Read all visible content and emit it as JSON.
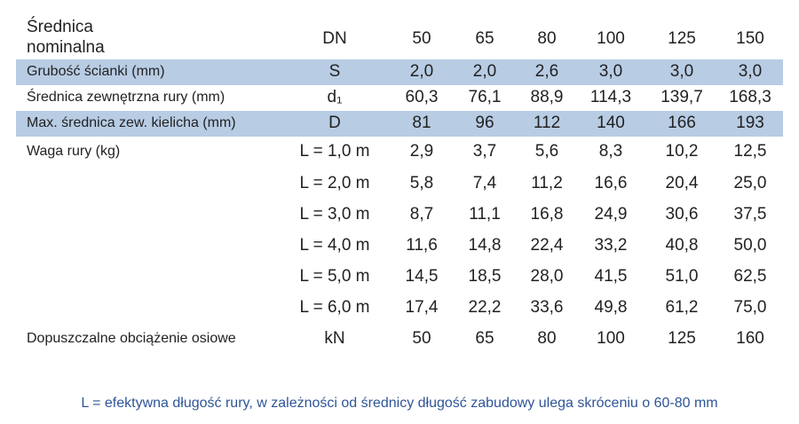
{
  "table": {
    "header": {
      "label": "Średnica nominalna",
      "unit": "DN",
      "values": [
        "50",
        "65",
        "80",
        "100",
        "125",
        "150"
      ]
    },
    "rows": [
      {
        "label": "Grubość ścianki (mm)",
        "unit": "S",
        "values": [
          "2,0",
          "2,0",
          "2,6",
          "3,0",
          "3,0",
          "3,0"
        ],
        "highlight": true
      },
      {
        "label": "Średnica zewnętrzna rury (mm)",
        "unit": "d₁",
        "values": [
          "60,3",
          "76,1",
          "88,9",
          "114,3",
          "139,7",
          "168,3"
        ],
        "highlight": false
      },
      {
        "label": "Max. średnica zew. kielicha (mm)",
        "unit": "D",
        "values": [
          "81",
          "96",
          "112",
          "140",
          "166",
          "193"
        ],
        "highlight": true
      }
    ],
    "weight": {
      "label": "Waga rury (kg)",
      "rows": [
        {
          "unit": "L = 1,0 m",
          "values": [
            "2,9",
            "3,7",
            "5,6",
            "8,3",
            "10,2",
            "12,5"
          ]
        },
        {
          "unit": "L = 2,0 m",
          "values": [
            "5,8",
            "7,4",
            "11,2",
            "16,6",
            "20,4",
            "25,0"
          ]
        },
        {
          "unit": "L = 3,0 m",
          "values": [
            "8,7",
            "11,1",
            "16,8",
            "24,9",
            "30,6",
            "37,5"
          ]
        },
        {
          "unit": "L = 4,0 m",
          "values": [
            "11,6",
            "14,8",
            "22,4",
            "33,2",
            "40,8",
            "50,0"
          ]
        },
        {
          "unit": "L = 5,0 m",
          "values": [
            "14,5",
            "18,5",
            "28,0",
            "41,5",
            "51,0",
            "62,5"
          ]
        },
        {
          "unit": "L = 6,0 m",
          "values": [
            "17,4",
            "22,2",
            "33,6",
            "49,8",
            "61,2",
            "75,0"
          ]
        }
      ]
    },
    "load": {
      "label": "Dopuszczalne obciążenie osiowe",
      "unit": "kN",
      "values": [
        "50",
        "65",
        "80",
        "100",
        "125",
        "160"
      ]
    }
  },
  "footnote": "L = efektywna długość rury, w zależności od średnicy długość zabudowy ulega skróceniu o 60-80 mm"
}
